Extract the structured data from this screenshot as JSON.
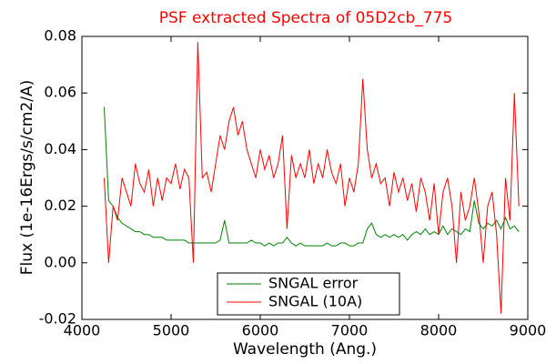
{
  "chart_data": {
    "type": "line",
    "title": "PSF extracted Spectra of 05D2cb_775",
    "title_color": "#ff0000",
    "xlabel": "Wavelength (Ang.)",
    "ylabel": "Flux (1e-16Ergs/s/cm2/A)",
    "x": [
      4250,
      4300,
      4350,
      4400,
      4450,
      4500,
      4550,
      4600,
      4650,
      4700,
      4750,
      4800,
      4850,
      4900,
      4950,
      5000,
      5050,
      5100,
      5150,
      5200,
      5250,
      5300,
      5350,
      5400,
      5450,
      5500,
      5550,
      5600,
      5650,
      5700,
      5750,
      5800,
      5850,
      5900,
      5950,
      6000,
      6050,
      6100,
      6150,
      6200,
      6250,
      6300,
      6350,
      6400,
      6450,
      6500,
      6550,
      6600,
      6650,
      6700,
      6750,
      6800,
      6850,
      6900,
      6950,
      7000,
      7050,
      7100,
      7150,
      7200,
      7250,
      7300,
      7350,
      7400,
      7450,
      7500,
      7550,
      7600,
      7650,
      7700,
      7750,
      7800,
      7850,
      7900,
      7950,
      8000,
      8050,
      8100,
      8150,
      8200,
      8250,
      8300,
      8350,
      8400,
      8450,
      8500,
      8550,
      8600,
      8650,
      8700,
      8750,
      8800,
      8850,
      8900
    ],
    "series": [
      {
        "name": "SNGAL error",
        "color": "#008000",
        "values": [
          0.055,
          0.022,
          0.02,
          0.016,
          0.014,
          0.013,
          0.012,
          0.011,
          0.011,
          0.01,
          0.01,
          0.009,
          0.009,
          0.009,
          0.008,
          0.008,
          0.008,
          0.008,
          0.008,
          0.007,
          0.007,
          0.007,
          0.007,
          0.007,
          0.007,
          0.007,
          0.008,
          0.015,
          0.007,
          0.007,
          0.007,
          0.007,
          0.007,
          0.008,
          0.007,
          0.007,
          0.006,
          0.007,
          0.006,
          0.007,
          0.007,
          0.009,
          0.007,
          0.006,
          0.007,
          0.006,
          0.006,
          0.006,
          0.006,
          0.006,
          0.007,
          0.006,
          0.006,
          0.007,
          0.007,
          0.006,
          0.006,
          0.007,
          0.007,
          0.012,
          0.014,
          0.01,
          0.009,
          0.01,
          0.009,
          0.01,
          0.009,
          0.01,
          0.008,
          0.01,
          0.011,
          0.01,
          0.012,
          0.01,
          0.011,
          0.01,
          0.013,
          0.01,
          0.012,
          0.011,
          0.01,
          0.012,
          0.011,
          0.022,
          0.014,
          0.012,
          0.014,
          0.013,
          0.015,
          0.012,
          0.016,
          0.012,
          0.013,
          0.011
        ]
      },
      {
        "name": "SNGAL (10A)",
        "color": "#ff0000",
        "values": [
          0.03,
          0.0,
          0.02,
          0.015,
          0.03,
          0.025,
          0.02,
          0.035,
          0.028,
          0.025,
          0.033,
          0.02,
          0.03,
          0.022,
          0.03,
          0.028,
          0.035,
          0.026,
          0.033,
          0.03,
          0.0,
          0.078,
          0.03,
          0.032,
          0.025,
          0.035,
          0.045,
          0.04,
          0.05,
          0.055,
          0.045,
          0.05,
          0.04,
          0.035,
          0.03,
          0.04,
          0.033,
          0.038,
          0.03,
          0.035,
          0.045,
          0.012,
          0.038,
          0.03,
          0.035,
          0.03,
          0.04,
          0.028,
          0.035,
          0.03,
          0.04,
          0.032,
          0.028,
          0.035,
          0.02,
          0.03,
          0.025,
          0.035,
          0.065,
          0.04,
          0.03,
          0.035,
          0.028,
          0.03,
          0.02,
          0.032,
          0.025,
          0.03,
          0.022,
          0.028,
          0.018,
          0.03,
          0.025,
          0.015,
          0.028,
          0.01,
          0.025,
          0.03,
          0.02,
          0.0,
          0.025,
          0.015,
          0.02,
          0.03,
          0.018,
          0.0,
          0.02,
          0.025,
          0.01,
          -0.018,
          0.03,
          0.015,
          0.06,
          0.02
        ]
      }
    ],
    "xlim": [
      4000,
      9000
    ],
    "xticks": [
      4000,
      5000,
      6000,
      7000,
      8000,
      9000
    ],
    "ylim": [
      -0.02,
      0.08
    ],
    "yticks": [
      -0.02,
      {
        "value": 0,
        "label": "0.00"
      },
      0.02,
      0.04,
      0.06,
      0.08
    ],
    "legend": "lower center"
  }
}
